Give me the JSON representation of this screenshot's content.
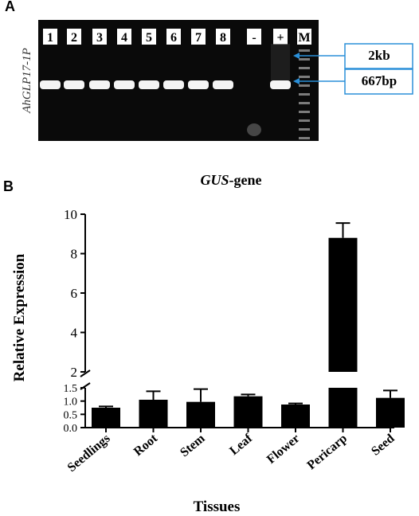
{
  "panel_a": {
    "letter": "A",
    "gene_label": "AhGLP17-1P",
    "lanes": [
      "1",
      "2",
      "3",
      "4",
      "5",
      "6",
      "7",
      "8",
      "-",
      "+",
      "M"
    ],
    "callouts": [
      "2kb",
      "667bp"
    ],
    "colors": {
      "gel_bg": "#0a0a0a",
      "band": "#f4f4f4",
      "callout_border": "#2a8fd8",
      "arrow": "#2a8fd8"
    }
  },
  "panel_b": {
    "letter": "B"
  },
  "chart_data": {
    "type": "bar",
    "title_italic": "GUS",
    "title_rest": "-gene",
    "xlabel": "Tissues",
    "ylabel": "Relative Expression",
    "categories": [
      "Seedlings",
      "Root",
      "Stem",
      "Leaf",
      "Flower",
      "Pericarp",
      "Seed"
    ],
    "values": [
      0.75,
      1.05,
      0.97,
      1.18,
      0.87,
      8.8,
      1.12
    ],
    "errors": [
      0.05,
      0.32,
      0.48,
      0.07,
      0.04,
      0.75,
      0.28
    ],
    "y_axis_broken": true,
    "lower_ylim": [
      0,
      1.5
    ],
    "lower_ticks": [
      "0.0",
      "0.5",
      "1.0",
      "1.5"
    ],
    "upper_ylim": [
      2,
      10
    ],
    "upper_ticks": [
      "2",
      "4",
      "6",
      "8",
      "10"
    ],
    "bar_color": "#000000",
    "grid": false,
    "legend": "none"
  }
}
